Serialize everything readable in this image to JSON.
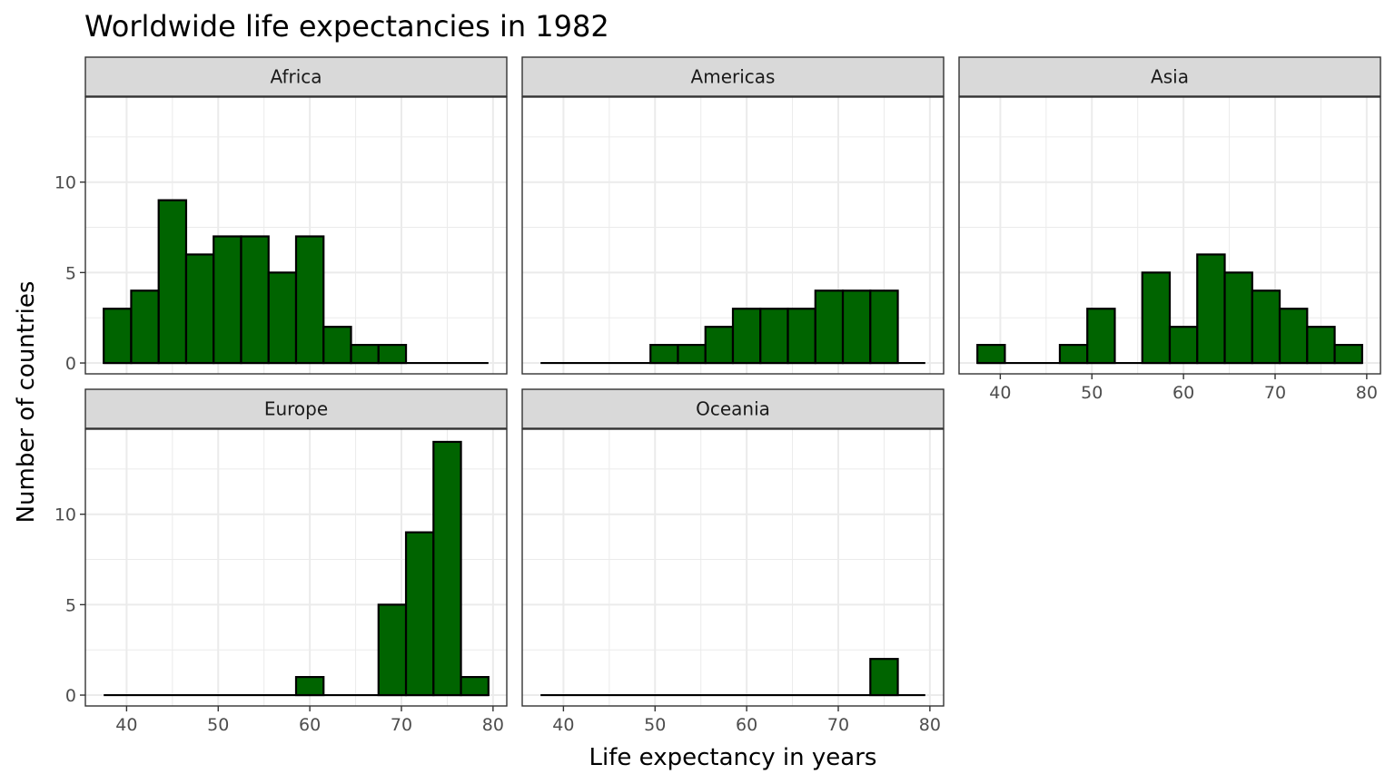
{
  "chart_data": {
    "type": "bar",
    "title": "Worldwide life expectancies in 1982",
    "xlabel": "Life expectancy in years",
    "ylabel": "Number of countries",
    "xlim": [
      37.5,
      79.5
    ],
    "ylim": [
      0,
      14
    ],
    "x_ticks": [
      40,
      50,
      60,
      70,
      80
    ],
    "y_ticks": [
      0,
      5,
      10
    ],
    "grid": true,
    "fill_color": "#006400",
    "bin_start": 37.5,
    "bin_width": 3,
    "bin_centers": [
      39,
      42,
      45,
      48,
      51,
      54,
      57,
      60,
      63,
      66,
      69,
      72,
      75,
      78
    ],
    "panels": [
      {
        "name": "Africa",
        "values": [
          3,
          4,
          9,
          6,
          7,
          7,
          5,
          7,
          2,
          1,
          1,
          0,
          0,
          0
        ]
      },
      {
        "name": "Americas",
        "values": [
          0,
          0,
          0,
          0,
          1,
          1,
          2,
          3,
          3,
          3,
          4,
          4,
          4,
          0
        ]
      },
      {
        "name": "Asia",
        "values": [
          1,
          0,
          0,
          1,
          3,
          0,
          5,
          2,
          6,
          5,
          4,
          3,
          2,
          1
        ]
      },
      {
        "name": "Europe",
        "values": [
          0,
          0,
          0,
          0,
          0,
          0,
          0,
          1,
          0,
          0,
          5,
          9,
          14,
          1
        ]
      },
      {
        "name": "Oceania",
        "values": [
          0,
          0,
          0,
          0,
          0,
          0,
          0,
          0,
          0,
          0,
          0,
          0,
          2,
          0
        ]
      }
    ]
  }
}
